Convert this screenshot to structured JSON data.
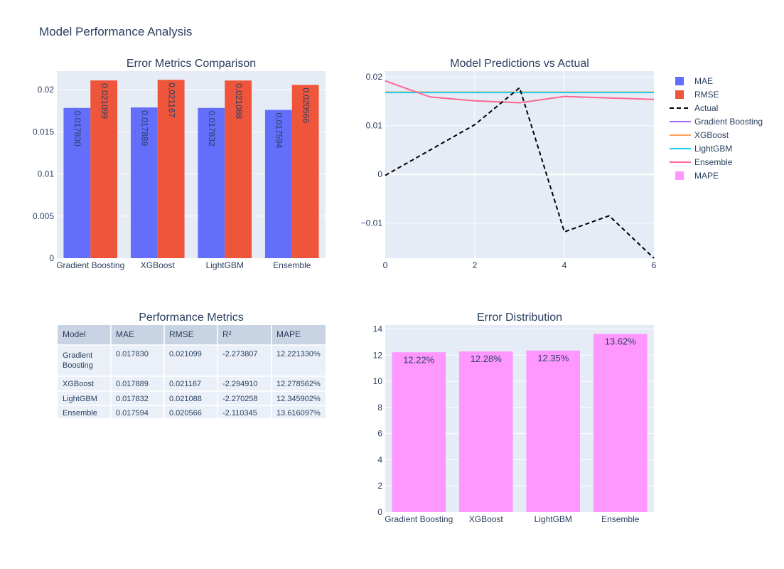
{
  "figure": {
    "title": "Model Performance Analysis"
  },
  "colors": {
    "mae": "#636efa",
    "rmse": "#ef553b",
    "actual": "#000000",
    "gradient_boosting": "#ab63fa",
    "xgboost": "#ffa15a",
    "lightgbm": "#19d3f3",
    "ensemble": "#ff6692",
    "mape": "#ff97ff",
    "plot_bg": "#e5ecf6",
    "table_header_bg": "#c8d4e3",
    "table_cell_bg": "#ebf0f8"
  },
  "legend": [
    {
      "label": "MAE",
      "kind": "box",
      "color": "#636efa"
    },
    {
      "label": "RMSE",
      "kind": "box",
      "color": "#ef553b"
    },
    {
      "label": "Actual",
      "kind": "dash",
      "color": "#000000"
    },
    {
      "label": "Gradient Boosting",
      "kind": "line",
      "color": "#ab63fa"
    },
    {
      "label": "XGBoost",
      "kind": "line",
      "color": "#ffa15a"
    },
    {
      "label": "LightGBM",
      "kind": "line",
      "color": "#19d3f3"
    },
    {
      "label": "Ensemble",
      "kind": "line",
      "color": "#ff6692"
    },
    {
      "label": "MAPE",
      "kind": "box",
      "color": "#ff97ff"
    }
  ],
  "chart_data": [
    {
      "type": "bar",
      "title": "Error Metrics Comparison",
      "categories": [
        "Gradient Boosting",
        "XGBoost",
        "LightGBM",
        "Ensemble"
      ],
      "series": [
        {
          "name": "MAE",
          "values": [
            0.01783,
            0.017889,
            0.017832,
            0.017594
          ],
          "labels": [
            "0.017830",
            "0.017889",
            "0.017832",
            "0.017594"
          ]
        },
        {
          "name": "RMSE",
          "values": [
            0.021099,
            0.021167,
            0.021088,
            0.020566
          ],
          "labels": [
            "0.021099",
            "0.021167",
            "0.021088",
            "0.020566"
          ]
        }
      ],
      "ylim": [
        0,
        0.0222
      ],
      "yticks": [
        0,
        0.005,
        0.01,
        0.015,
        0.02
      ],
      "ytick_labels": [
        "0",
        "0.005",
        "0.01",
        "0.015",
        "0.02"
      ]
    },
    {
      "type": "line",
      "title": "Model Predictions vs Actual",
      "x": [
        0,
        1,
        2,
        3,
        4,
        5,
        6
      ],
      "series": [
        {
          "name": "Actual",
          "values": [
            -0.0002,
            0.005,
            0.0102,
            0.0178,
            -0.0118,
            -0.0085,
            -0.0172
          ]
        },
        {
          "name": "Gradient Boosting",
          "values": [
            0.0169,
            0.0169,
            0.0169,
            0.0169,
            0.0169,
            0.0169,
            0.0169
          ]
        },
        {
          "name": "XGBoost",
          "values": [
            0.0169,
            0.0169,
            0.0169,
            0.0169,
            0.0169,
            0.0169,
            0.0169
          ]
        },
        {
          "name": "LightGBM",
          "values": [
            0.0168,
            0.0168,
            0.0168,
            0.0168,
            0.0168,
            0.0168,
            0.0168
          ]
        },
        {
          "name": "Ensemble",
          "values": [
            0.0192,
            0.0159,
            0.0151,
            0.0147,
            0.016,
            0.0157,
            0.0154
          ]
        }
      ],
      "xlim": [
        0,
        6
      ],
      "ylim": [
        -0.0172,
        0.0212
      ],
      "xticks": [
        0,
        2,
        4,
        6
      ],
      "yticks": [
        -0.01,
        0,
        0.01,
        0.02
      ],
      "ytick_labels": [
        "−0.01",
        "0",
        "0.01",
        "0.02"
      ]
    },
    {
      "type": "table",
      "title": "Performance Metrics",
      "columns": [
        "Model",
        "MAE",
        "RMSE",
        "R²",
        "MAPE"
      ],
      "rows": [
        [
          "Gradient Boosting",
          "0.017830",
          "0.021099",
          "-2.273807",
          "12.221330%"
        ],
        [
          "XGBoost",
          "0.017889",
          "0.021167",
          "-2.294910",
          "12.278562%"
        ],
        [
          "LightGBM",
          "0.017832",
          "0.021088",
          "-2.270258",
          "12.345902%"
        ],
        [
          "Ensemble",
          "0.017594",
          "0.020566",
          "-2.110345",
          "13.616097%"
        ]
      ]
    },
    {
      "type": "bar",
      "title": "Error Distribution",
      "categories": [
        "Gradient Boosting",
        "XGBoost",
        "LightGBM",
        "Ensemble"
      ],
      "series": [
        {
          "name": "MAPE",
          "values": [
            12.22,
            12.28,
            12.35,
            13.62
          ],
          "labels": [
            "12.22%",
            "12.28%",
            "12.35%",
            "13.62%"
          ]
        }
      ],
      "ylim": [
        0,
        14.3
      ],
      "yticks": [
        0,
        2,
        4,
        6,
        8,
        10,
        12,
        14
      ]
    }
  ]
}
